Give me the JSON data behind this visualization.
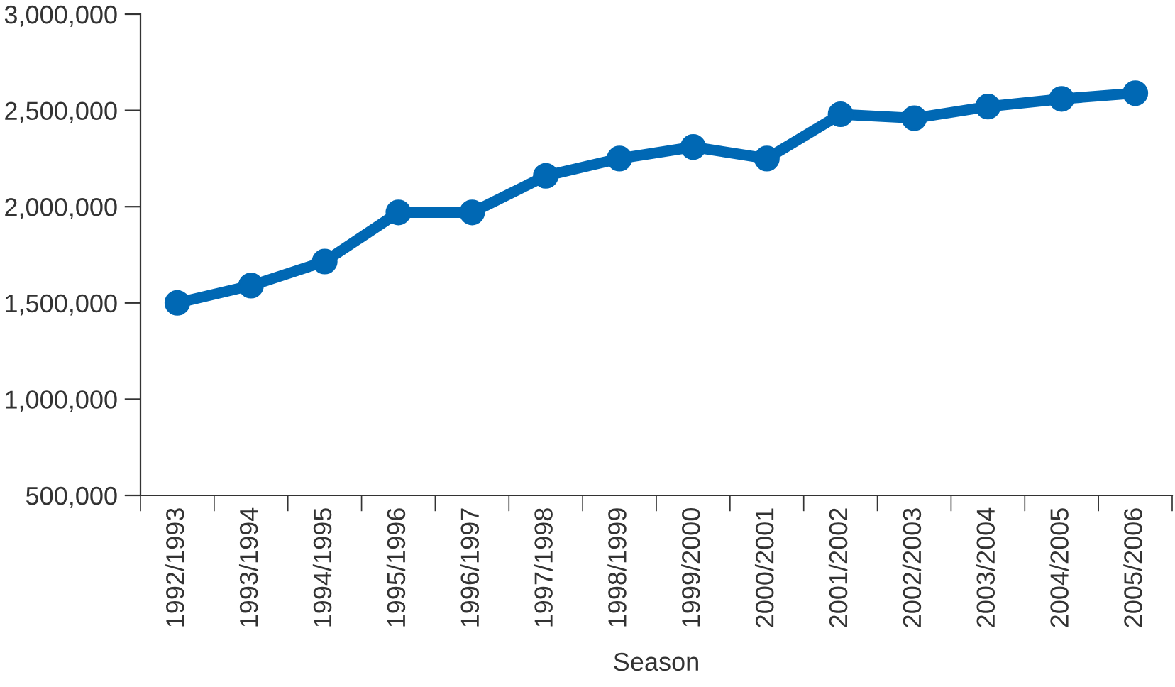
{
  "chart_data": {
    "type": "line",
    "xlabel": "Season",
    "categories": [
      "1992/1993",
      "1993/1994",
      "1994/1995",
      "1995/1996",
      "1996/1997",
      "1997/1998",
      "1998/1999",
      "1999/2000",
      "2000/2001",
      "2001/2002",
      "2002/2003",
      "2003/2004",
      "2004/2005",
      "2005/2006"
    ],
    "series": [
      {
        "color": "#0068b4",
        "values": [
          1500000,
          1590000,
          1715000,
          1970000,
          1970000,
          2160000,
          2250000,
          2310000,
          2250000,
          2480000,
          2460000,
          2520000,
          2560000,
          2590000
        ]
      }
    ],
    "ylim": [
      500000,
      3000000
    ],
    "yticks": [
      {
        "value": 500000,
        "label": "500,000"
      },
      {
        "value": 1000000,
        "label": "1,000,000"
      },
      {
        "value": 1500000,
        "label": "1,500,000"
      },
      {
        "value": 2000000,
        "label": "2,000,000"
      },
      {
        "value": 2500000,
        "label": "2,500,000"
      },
      {
        "value": 3000000,
        "label": "3,000,000"
      }
    ],
    "marker": "circle",
    "line_style": "solid",
    "grid": false
  }
}
